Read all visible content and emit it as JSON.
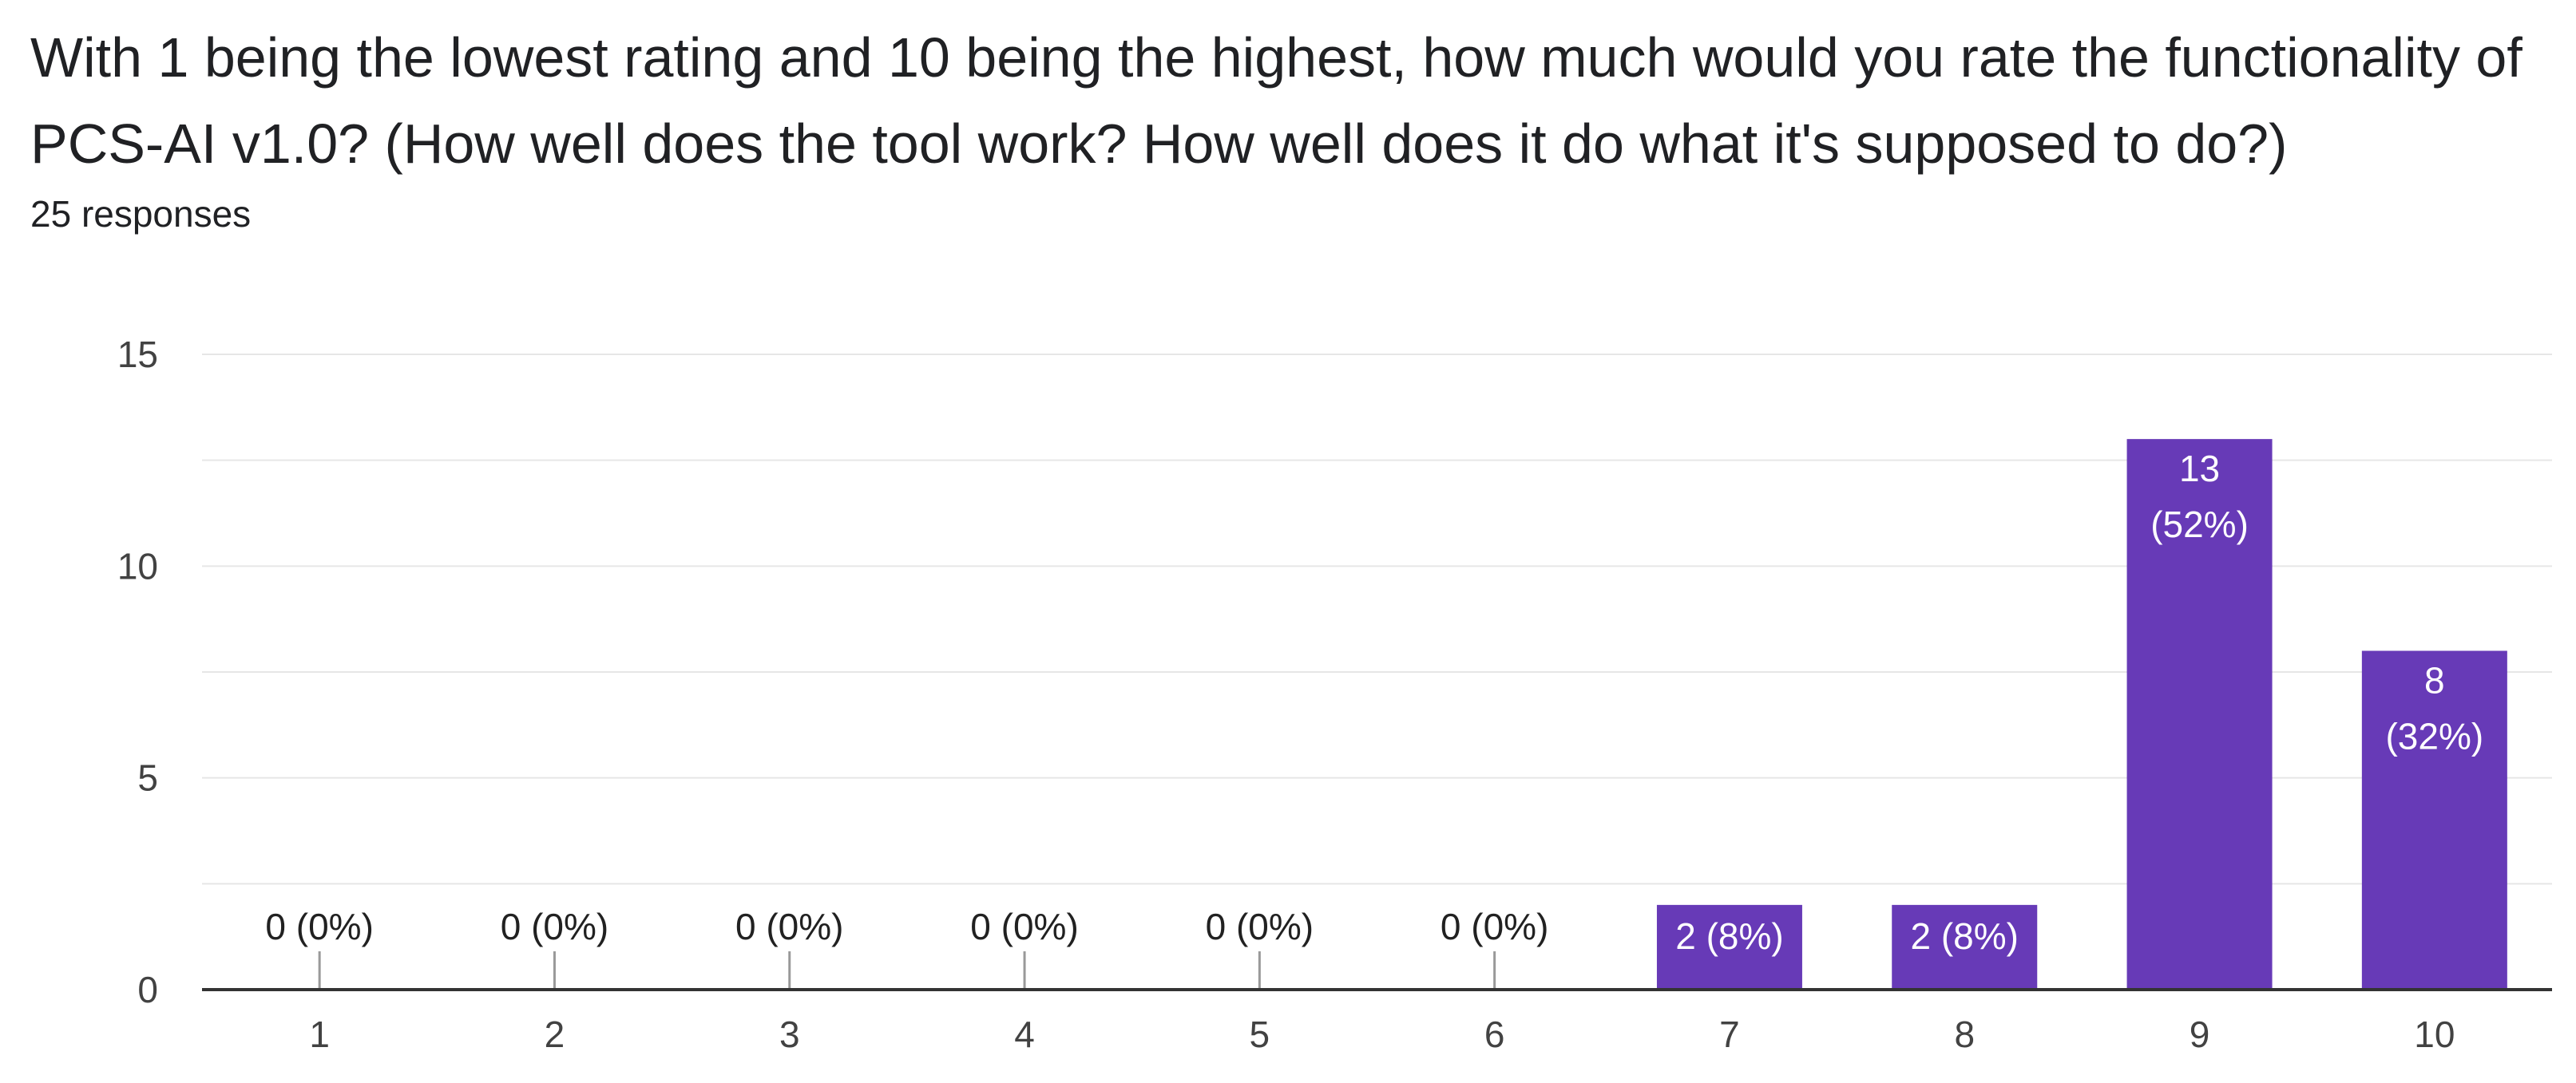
{
  "question": {
    "title": "With 1 being the lowest rating and 10 being the highest, how much would you rate the functionality of  PCS-AI v1.0? (How well does the tool work? How well does it do what it's supposed to do?)",
    "responses": "25 responses"
  },
  "chart_data": {
    "type": "bar",
    "title": "",
    "xlabel": "",
    "ylabel": "",
    "categories": [
      "1",
      "2",
      "3",
      "4",
      "5",
      "6",
      "7",
      "8",
      "9",
      "10"
    ],
    "values": [
      0,
      0,
      0,
      0,
      0,
      0,
      2,
      2,
      13,
      8
    ],
    "data_labels": [
      [
        "0 (0%)"
      ],
      [
        "0 (0%)"
      ],
      [
        "0 (0%)"
      ],
      [
        "0 (0%)"
      ],
      [
        "0 (0%)"
      ],
      [
        "0 (0%)"
      ],
      [
        "2 (8%)"
      ],
      [
        "2 (8%)"
      ],
      [
        "13",
        "(52%)"
      ],
      [
        "8",
        "(32%)"
      ]
    ],
    "ylim": [
      0,
      15
    ],
    "y_ticks": [
      "0",
      "5",
      "10",
      "15"
    ],
    "y_tick_values": [
      0,
      5,
      10,
      15
    ],
    "minor_grid_step": 2.5,
    "grid": true,
    "legend": "none",
    "colors": {
      "bar": "#673ab7",
      "bar_label": "#ffffff",
      "zero_label": "#212121",
      "axis_text": "#424242",
      "gridline": "#e6e6e6",
      "baseline": "#333333",
      "zero_tick": "#999999"
    }
  }
}
